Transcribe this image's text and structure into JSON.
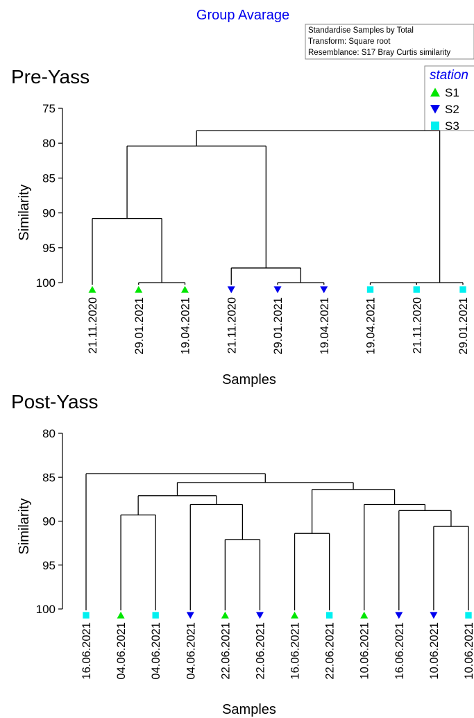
{
  "figure": {
    "title": "Group Avarage",
    "info_lines": [
      "Standardise Samples by Total",
      "Transform: Square root",
      "Resemblance: S17 Bray Curtis similarity"
    ],
    "legend": {
      "title": "station",
      "entries": [
        {
          "name": "S1",
          "marker": "triangle-up",
          "color": "#00e600"
        },
        {
          "name": "S2",
          "marker": "triangle-down",
          "color": "#0000ee"
        },
        {
          "name": "S3",
          "marker": "square",
          "color": "#00f0f0"
        }
      ]
    }
  },
  "chart_data": [
    {
      "type": "dendrogram",
      "title": "Pre-Yass",
      "xlabel": "Samples",
      "ylabel": "Similarity",
      "ylim": [
        75,
        100
      ],
      "yticks": [
        75,
        80,
        85,
        90,
        95,
        100
      ],
      "leaves": [
        {
          "label": "21.11.2020",
          "station": "S1"
        },
        {
          "label": "29.01.2021",
          "station": "S1"
        },
        {
          "label": "19.04.2021",
          "station": "S1"
        },
        {
          "label": "21.11.2020",
          "station": "S2"
        },
        {
          "label": "29.01.2021",
          "station": "S2"
        },
        {
          "label": "19.04.2021",
          "station": "S2"
        },
        {
          "label": "19.04.2021",
          "station": "S3"
        },
        {
          "label": "21.11.2020",
          "station": "S3"
        },
        {
          "label": "29.01.2021",
          "station": "S3"
        }
      ],
      "merges": [
        {
          "a": "L1",
          "b": "L2",
          "similarity": 100
        },
        {
          "a": "L4",
          "b": "L5",
          "similarity": 100
        },
        {
          "a": "L6",
          "b": "L7",
          "similarity": 100
        },
        {
          "a": "L7",
          "b": "L8",
          "similarity": 100
        },
        {
          "a": "L0",
          "b": "M0",
          "similarity": 90.8
        },
        {
          "a": "L3",
          "b": "M1",
          "similarity": 97.9
        },
        {
          "a": "M4",
          "b": "M5",
          "similarity": 80.4
        },
        {
          "a": "M6",
          "b": "M3",
          "similarity": 78.2
        }
      ]
    },
    {
      "type": "dendrogram",
      "title": "Post-Yass",
      "xlabel": "Samples",
      "ylabel": "Similarity",
      "ylim": [
        80,
        100
      ],
      "yticks": [
        80,
        85,
        90,
        95,
        100
      ],
      "leaves": [
        {
          "label": "16.06.2021",
          "station": "S3"
        },
        {
          "label": "04.06.2021",
          "station": "S1"
        },
        {
          "label": "04.06.2021",
          "station": "S3"
        },
        {
          "label": "04.06.2021",
          "station": "S2"
        },
        {
          "label": "22.06.2021",
          "station": "S1"
        },
        {
          "label": "22.06.2021",
          "station": "S2"
        },
        {
          "label": "16.06.2021",
          "station": "S1"
        },
        {
          "label": "22.06.2021",
          "station": "S3"
        },
        {
          "label": "10.06.2021",
          "station": "S1"
        },
        {
          "label": "16.06.2021",
          "station": "S2"
        },
        {
          "label": "10.06.2021",
          "station": "S2"
        },
        {
          "label": "10.06.2021",
          "station": "S3"
        }
      ],
      "merges": [
        {
          "a": "L1",
          "b": "L2",
          "similarity": 89.3
        },
        {
          "a": "L4",
          "b": "L5",
          "similarity": 92.1
        },
        {
          "a": "L3",
          "b": "M1",
          "similarity": 88.1
        },
        {
          "a": "M0",
          "b": "M2",
          "similarity": 87.1
        },
        {
          "a": "L6",
          "b": "L7",
          "similarity": 91.4
        },
        {
          "a": "L10",
          "b": "L11",
          "similarity": 90.6
        },
        {
          "a": "L9",
          "b": "M5",
          "similarity": 88.8
        },
        {
          "a": "L8",
          "b": "M6",
          "similarity": 88.1
        },
        {
          "a": "M4",
          "b": "M7",
          "similarity": 86.4
        },
        {
          "a": "M3",
          "b": "M8",
          "similarity": 85.6
        },
        {
          "a": "L0",
          "b": "M9",
          "similarity": 84.6
        }
      ]
    }
  ]
}
